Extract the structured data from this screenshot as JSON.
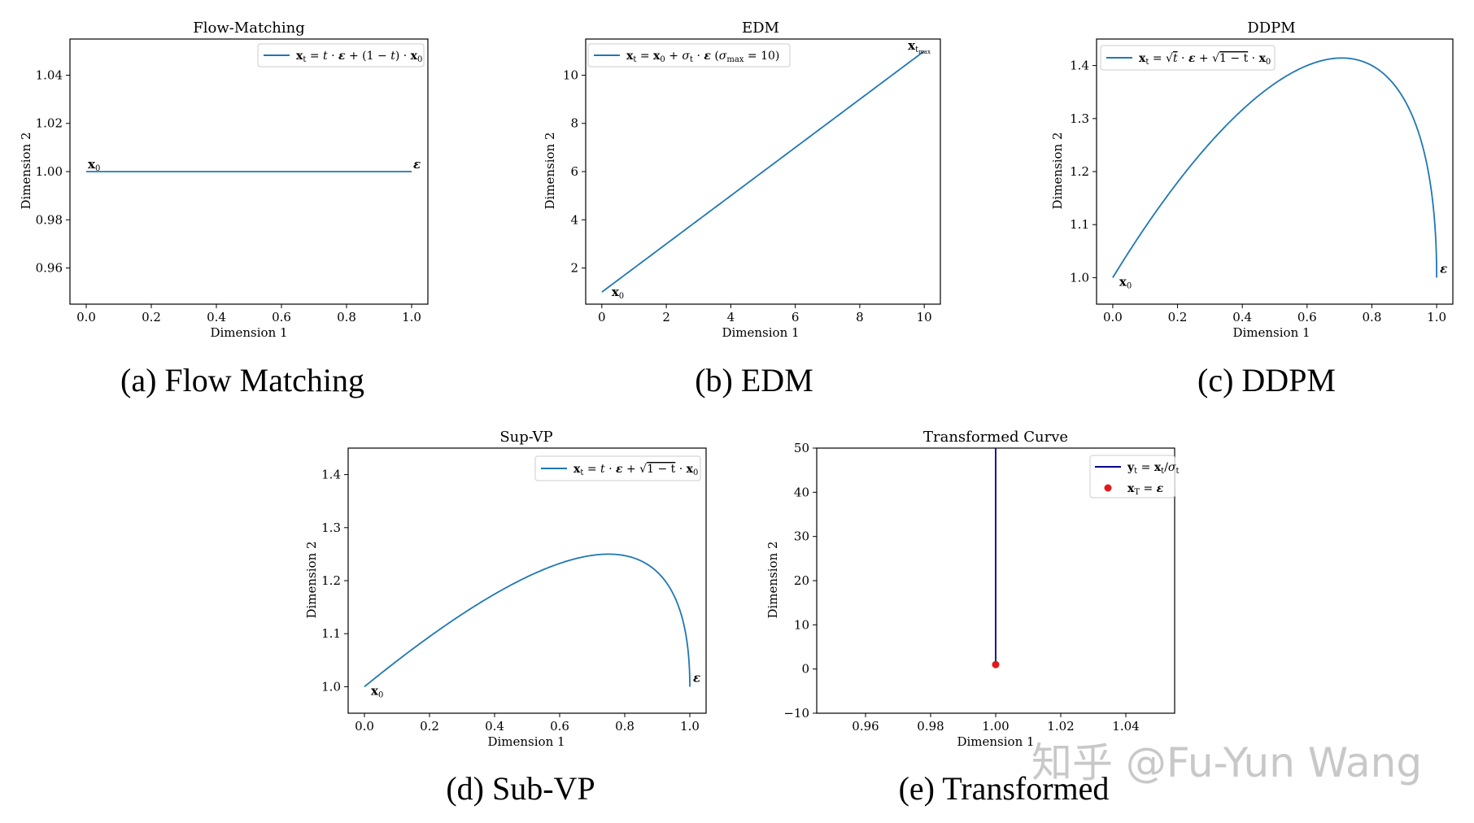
{
  "watermark": "知乎 @Fu-Yun Wang",
  "chart_data": [
    {
      "id": "fm",
      "type": "line",
      "title": "Flow-Matching",
      "caption": "(a) Flow Matching",
      "xlabel": "Dimension 1",
      "ylabel": "Dimension 2",
      "xlim": [
        -0.05,
        1.05
      ],
      "ylim": [
        0.945,
        1.055
      ],
      "xticks": [
        0.0,
        0.2,
        0.4,
        0.6,
        0.8,
        1.0
      ],
      "xtick_labels": [
        "0.0",
        "0.2",
        "0.4",
        "0.6",
        "0.8",
        "1.0"
      ],
      "yticks": [
        0.96,
        0.98,
        1.0,
        1.02,
        1.04
      ],
      "ytick_labels": [
        "0.96",
        "0.98",
        "1.00",
        "1.02",
        "1.04"
      ],
      "legend": "x_t = t·ε + (1 − t)·x_0",
      "legend_position": "upper right",
      "curve": "flow_matching",
      "series": [
        {
          "name": "x_t = t·ε + (1 − t)·x_0",
          "color": "#1f77b4",
          "x": [
            0.0,
            1.0
          ],
          "y": [
            1.0,
            1.0
          ]
        }
      ],
      "annotations": [
        {
          "text": "x₀",
          "x": 0.0,
          "y": 1.0,
          "dx": 2,
          "dy": -4
        },
        {
          "text": "ε",
          "x": 1.0,
          "y": 1.0,
          "dx": 2,
          "dy": -4
        }
      ]
    },
    {
      "id": "edm",
      "type": "line",
      "title": "EDM",
      "caption": "(b) EDM",
      "xlabel": "Dimension 1",
      "ylabel": "Dimension 2",
      "xlim": [
        -0.5,
        10.5
      ],
      "ylim": [
        0.5,
        11.5
      ],
      "xticks": [
        0,
        2,
        4,
        6,
        8,
        10
      ],
      "xtick_labels": [
        "0",
        "2",
        "4",
        "6",
        "8",
        "10"
      ],
      "yticks": [
        2,
        4,
        6,
        8,
        10
      ],
      "ytick_labels": [
        "2",
        "4",
        "6",
        "8",
        "10"
      ],
      "legend": "x_t = x_0 + σ_t·ε   (σ_max = 10)",
      "legend_position": "upper left",
      "curve": "edm",
      "series": [
        {
          "name": "x_t = x_0 + σ_t·ε (σ_max = 10)",
          "color": "#1f77b4",
          "x": [
            0.0,
            10.0
          ],
          "y": [
            1.0,
            11.0
          ]
        }
      ],
      "annotations": [
        {
          "text": "x₀",
          "x": 0.0,
          "y": 1.0,
          "dx": 12,
          "dy": 5
        },
        {
          "text": "x_t_max",
          "x": 10.0,
          "y": 11.0,
          "dx": -20,
          "dy": -2
        }
      ]
    },
    {
      "id": "ddpm",
      "type": "line",
      "title": "DDPM",
      "caption": "(c) DDPM",
      "xlabel": "Dimension 1",
      "ylabel": "Dimension 2",
      "xlim": [
        -0.05,
        1.05
      ],
      "ylim": [
        0.95,
        1.45
      ],
      "xticks": [
        0.0,
        0.2,
        0.4,
        0.6,
        0.8,
        1.0
      ],
      "xtick_labels": [
        "0.0",
        "0.2",
        "0.4",
        "0.6",
        "0.8",
        "1.0"
      ],
      "yticks": [
        1.0,
        1.1,
        1.2,
        1.3,
        1.4
      ],
      "ytick_labels": [
        "1.0",
        "1.1",
        "1.2",
        "1.3",
        "1.4"
      ],
      "legend": "x_t = √t·ε + √(1 − t)·x_0",
      "legend_position": "upper left",
      "curve": "ddpm",
      "series": [
        {
          "name": "x_t = √t·ε + √(1 − t)·x_0",
          "color": "#1f77b4",
          "x": [
            0.0,
            0.2,
            0.4,
            0.6,
            0.707,
            0.8,
            0.9,
            0.98,
            1.0
          ],
          "y": [
            1.0,
            1.18,
            1.32,
            1.4,
            1.414,
            1.4,
            1.34,
            1.18,
            1.0
          ]
        }
      ],
      "annotations": [
        {
          "text": "x₀",
          "x": 0.0,
          "y": 1.0,
          "dx": 8,
          "dy": 10
        },
        {
          "text": "ε",
          "x": 1.0,
          "y": 1.0,
          "dx": 4,
          "dy": -6
        }
      ]
    },
    {
      "id": "subvp",
      "type": "line",
      "title": "Sup-VP",
      "caption": "(d) Sub-VP",
      "xlabel": "Dimension 1",
      "ylabel": "Dimension 2",
      "xlim": [
        -0.05,
        1.05
      ],
      "ylim": [
        0.95,
        1.45
      ],
      "xticks": [
        0.0,
        0.2,
        0.4,
        0.6,
        0.8,
        1.0
      ],
      "xtick_labels": [
        "0.0",
        "0.2",
        "0.4",
        "0.6",
        "0.8",
        "1.0"
      ],
      "yticks": [
        1.0,
        1.1,
        1.2,
        1.3,
        1.4
      ],
      "ytick_labels": [
        "1.0",
        "1.1",
        "1.2",
        "1.3",
        "1.4"
      ],
      "legend": "x_t = t·ε + √(1 − t)·x_0",
      "legend_position": "upper right",
      "curve": "subvp",
      "series": [
        {
          "name": "x_t = t·ε + √(1 − t)·x_0",
          "color": "#1f77b4",
          "x": [
            0.0,
            0.2,
            0.4,
            0.6,
            0.75,
            0.9,
            0.98,
            1.0
          ],
          "y": [
            1.0,
            1.09,
            1.17,
            1.23,
            1.25,
            1.22,
            1.12,
            1.0
          ]
        }
      ],
      "annotations": [
        {
          "text": "x₀",
          "x": 0.0,
          "y": 1.0,
          "dx": 8,
          "dy": 10
        },
        {
          "text": "ε",
          "x": 1.0,
          "y": 1.0,
          "dx": 4,
          "dy": -6
        }
      ]
    },
    {
      "id": "transformed",
      "type": "line",
      "title": "Transformed Curve",
      "caption": "(e) Transformed",
      "xlabel": "Dimension 1",
      "ylabel": "Dimension 2",
      "xlim": [
        0.945,
        1.055
      ],
      "ylim": [
        -10,
        50
      ],
      "xticks": [
        0.96,
        0.98,
        1.0,
        1.02,
        1.04
      ],
      "xtick_labels": [
        "0.96",
        "0.98",
        "1.00",
        "1.02",
        "1.04"
      ],
      "yticks": [
        -10,
        0,
        10,
        20,
        30,
        40,
        50
      ],
      "ytick_labels": [
        "−10",
        "0",
        "10",
        "20",
        "30",
        "40",
        "50"
      ],
      "legend": "y_t = x_t / σ_t ; x_T = ε",
      "legend_position": "upper right",
      "curve": "transformed",
      "series": [
        {
          "name": "y_t = x_t / σ_t",
          "color": "#00008b",
          "x": [
            1.0,
            1.0
          ],
          "y": [
            1.0,
            50.0
          ]
        },
        {
          "name": "x_T = ε",
          "color": "#e31a1c",
          "marker": "point",
          "x": [
            1.0
          ],
          "y": [
            1.0
          ]
        }
      ],
      "annotations": []
    }
  ]
}
